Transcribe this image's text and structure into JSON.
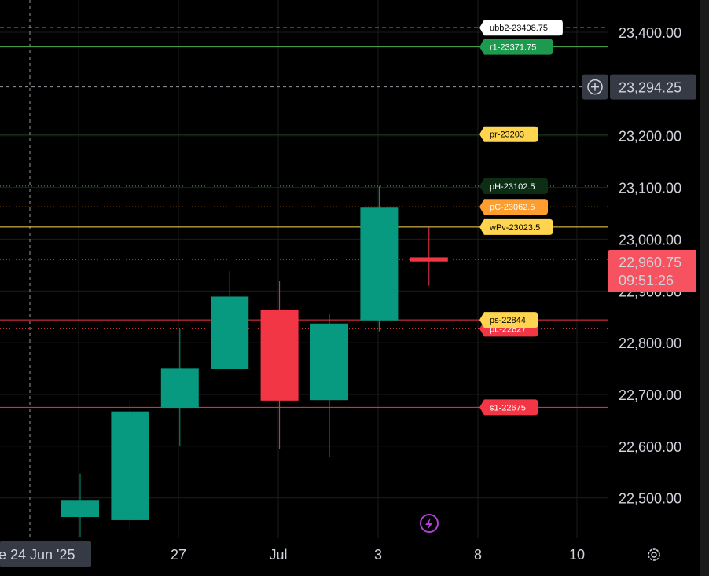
{
  "chart_data": {
    "type": "candlestick",
    "x_labels": [
      "27",
      "Jul",
      "3",
      "8",
      "10"
    ],
    "crosshair_date": "e 24 Jun '25",
    "ylim": [
      22425,
      23455
    ],
    "y_ticks": [
      {
        "value": 23400,
        "label": "23,400.00"
      },
      {
        "value": 23200,
        "label": "23,200.00"
      },
      {
        "value": 23100,
        "label": "23,100.00"
      },
      {
        "value": 23000,
        "label": "23,000.00"
      },
      {
        "value": 22900,
        "label": "22,900.00"
      },
      {
        "value": 22800,
        "label": "22,800.00"
      },
      {
        "value": 22700,
        "label": "22,700.00"
      },
      {
        "value": 22600,
        "label": "22,600.00"
      },
      {
        "value": 22500,
        "label": "22,500.00"
      }
    ],
    "candles": [
      {
        "open": 22463,
        "high": 22547,
        "low": 22425,
        "close": 22496
      },
      {
        "open": 22457,
        "high": 22690,
        "low": 22437,
        "close": 22667
      },
      {
        "open": 22674,
        "high": 22827,
        "low": 22600,
        "close": 22751
      },
      {
        "open": 22750,
        "high": 22938,
        "low": 22750,
        "close": 22889
      },
      {
        "open": 22864,
        "high": 22920,
        "low": 22595,
        "close": 22688
      },
      {
        "open": 22689,
        "high": 22856,
        "low": 22580,
        "close": 22837
      },
      {
        "open": 22843,
        "high": 23102,
        "low": 22822,
        "close": 23061
      },
      {
        "open": 22965,
        "high": 23023,
        "low": 22910,
        "close": 22957
      }
    ],
    "levels": [
      {
        "label": "ubb2-23408.75",
        "value": 23408.75,
        "line_color": "#ffffff",
        "style": "dashed",
        "tag_bg": "#ffffff",
        "tag_fg": "#000000"
      },
      {
        "label": "r1-23371.75",
        "value": 23371.75,
        "line_color": "#4caf50",
        "style": "solid",
        "tag_bg": "#1e9a4e",
        "tag_fg": "#ffffff"
      },
      {
        "label": "pr-23203",
        "value": 23203,
        "line_color": "#4caf50",
        "style": "solid",
        "tag_bg": "#ffd54f",
        "tag_fg": "#000000"
      },
      {
        "label": "pH-23102.5",
        "value": 23102.5,
        "line_color": "#4caf50",
        "style": "dotted",
        "tag_bg": "#0b2e14",
        "tag_fg": "#ffffff"
      },
      {
        "label": "pC-23062.5",
        "value": 23062.5,
        "line_color": "#ff9800",
        "style": "dotted",
        "tag_bg": "#ff9d2e",
        "tag_fg": "#ffffff"
      },
      {
        "label": "wPv-23023.5",
        "value": 23023.5,
        "line_color": "#ffd54f",
        "style": "solid",
        "tag_bg": "#ffd54f",
        "tag_fg": "#000000"
      },
      {
        "label": "pL-22827",
        "value": 22827,
        "line_color": "#f23645",
        "style": "dotted",
        "tag_bg": "#f23645",
        "tag_fg": "#ffffff"
      },
      {
        "label": "ps-22844",
        "value": 22844,
        "line_color": "#f23645",
        "style": "solid",
        "tag_bg": "#ffd54f",
        "tag_fg": "#000000"
      },
      {
        "label": "s1-22675",
        "value": 22675,
        "line_color": "#f23645",
        "style": "solid",
        "tag_bg": "#f23645",
        "tag_fg": "#ffffff"
      }
    ],
    "crosshair_price": {
      "value": 23294.25,
      "label": "23,294.25"
    },
    "current_price": {
      "value": 22960.75,
      "label": "22,960.75",
      "countdown": "09:51:26"
    },
    "colors": {
      "up": "#089981",
      "down": "#f23645",
      "text": "#d1d4dc",
      "grid": "#1c1c1c"
    }
  },
  "ui": {
    "lightning_icon": "lightning-icon",
    "settings_icon": "gear-icon",
    "add_icon": "plus-circle-icon"
  }
}
